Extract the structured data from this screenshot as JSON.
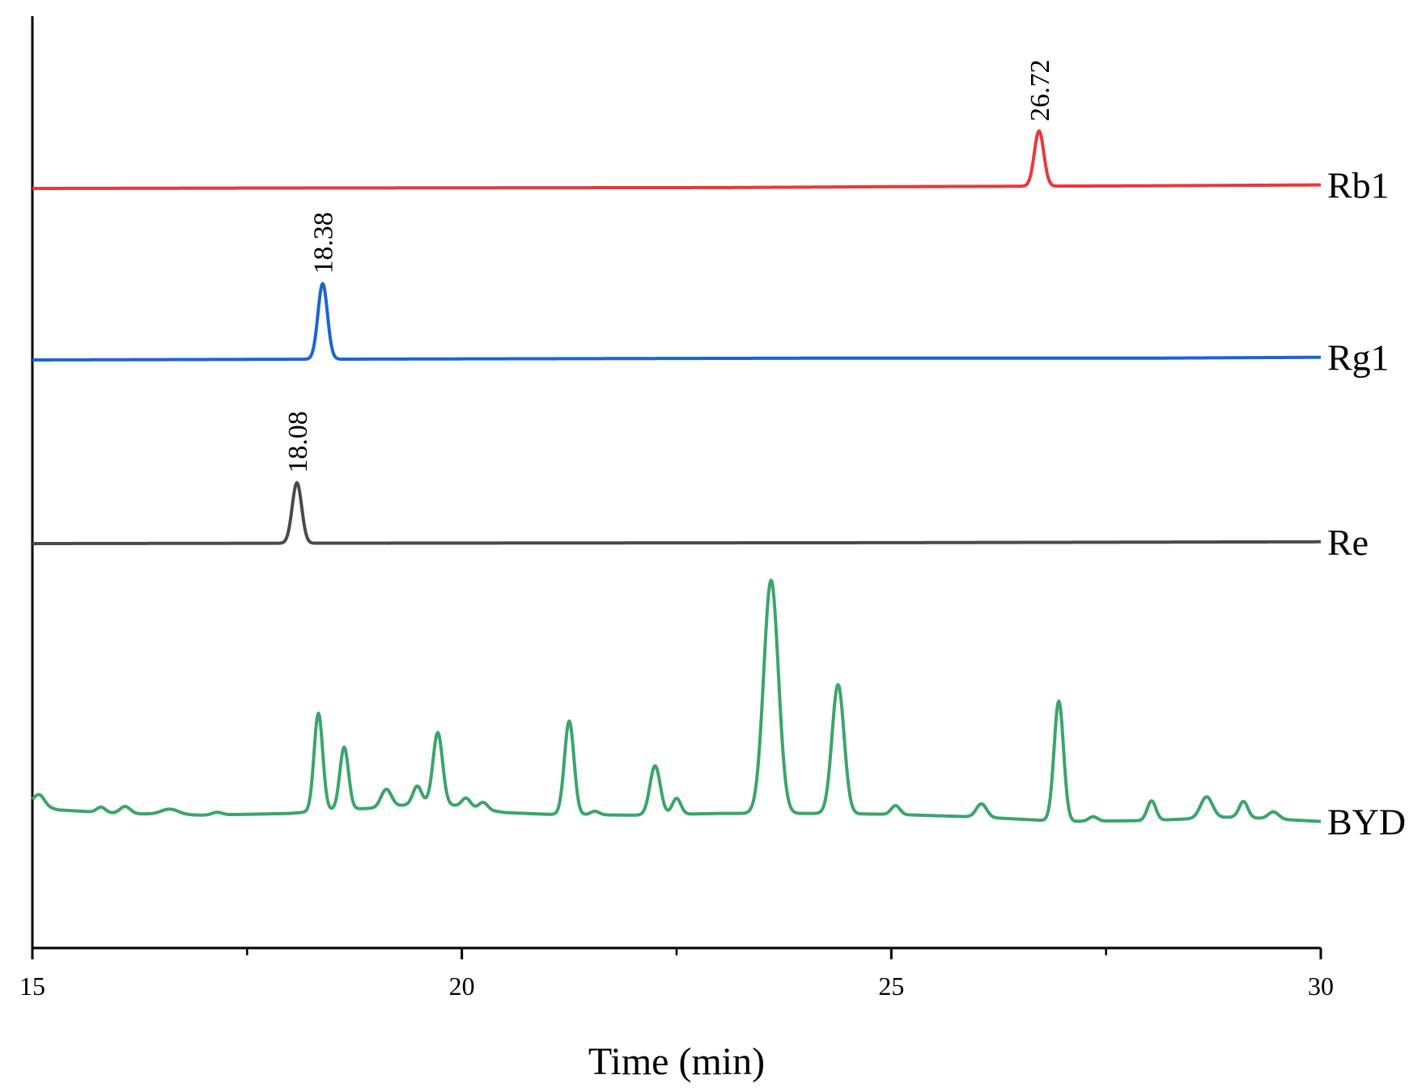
{
  "chart_data": {
    "type": "line",
    "xlabel": "Time (min)",
    "ylabel": "",
    "xlim": [
      15,
      30
    ],
    "x_ticks": [
      "15",
      "20",
      "25",
      "30"
    ],
    "x_minor_ticks": [
      17.5,
      22.5,
      27.5
    ],
    "y_ticks_shown": false,
    "grid": false,
    "legend": "none (series labelled at right end of each trace)",
    "series": [
      {
        "name": "Rb1",
        "color": "#e8393b",
        "baseline": [
          [
            15,
            0
          ],
          [
            18,
            0.005
          ],
          [
            23,
            0.01
          ],
          [
            25,
            0.02
          ],
          [
            28,
            0.03
          ],
          [
            30,
            0.04
          ]
        ],
        "peaks": [
          {
            "x": 26.72,
            "height": 0.62,
            "width": 0.055
          }
        ],
        "annotation": "26.72"
      },
      {
        "name": "Rg1",
        "color": "#1c64d6",
        "baseline": [
          [
            15,
            0
          ],
          [
            19,
            0.01
          ],
          [
            24,
            0.02
          ],
          [
            28,
            0.02
          ],
          [
            30,
            0.03
          ]
        ],
        "peaks": [
          {
            "x": 18.38,
            "height": 0.85,
            "width": 0.055
          }
        ],
        "annotation": "18.38"
      },
      {
        "name": "Re",
        "color": "#4a4a4a",
        "baseline": [
          [
            15,
            0
          ],
          [
            19,
            0.005
          ],
          [
            25,
            0.01
          ],
          [
            30,
            0.02
          ]
        ],
        "peaks": [
          {
            "x": 18.08,
            "height": 0.68,
            "width": 0.055
          }
        ],
        "annotation": "18.08"
      },
      {
        "name": "BYD",
        "color": "#3aa56a",
        "baseline": [
          [
            15,
            0.15
          ],
          [
            15.3,
            0.08
          ],
          [
            16,
            0.04
          ],
          [
            17,
            0.02
          ],
          [
            18,
            0.04
          ],
          [
            18.5,
            0.08
          ],
          [
            19,
            0.1
          ],
          [
            19.6,
            0.16
          ],
          [
            20,
            0.12
          ],
          [
            20.5,
            0.05
          ],
          [
            21,
            0.03
          ],
          [
            22,
            0.02
          ],
          [
            23,
            0.04
          ],
          [
            24.2,
            0.04
          ],
          [
            25,
            0.03
          ],
          [
            26,
            0.0
          ],
          [
            27,
            -0.05
          ],
          [
            28,
            -0.04
          ],
          [
            29,
            0.0
          ],
          [
            30,
            -0.05
          ]
        ],
        "peaks": [
          {
            "x": 15.08,
            "height": 0.12,
            "width": 0.06
          },
          {
            "x": 15.8,
            "height": 0.06,
            "width": 0.05
          },
          {
            "x": 16.08,
            "height": 0.08,
            "width": 0.06
          },
          {
            "x": 16.6,
            "height": 0.06,
            "width": 0.1
          },
          {
            "x": 17.15,
            "height": 0.03,
            "width": 0.06
          },
          {
            "x": 18.33,
            "height": 1.1,
            "width": 0.05
          },
          {
            "x": 18.63,
            "height": 0.7,
            "width": 0.05
          },
          {
            "x": 19.12,
            "height": 0.2,
            "width": 0.06
          },
          {
            "x": 19.48,
            "height": 0.2,
            "width": 0.05
          },
          {
            "x": 19.72,
            "height": 0.8,
            "width": 0.055
          },
          {
            "x": 20.05,
            "height": 0.1,
            "width": 0.05
          },
          {
            "x": 20.25,
            "height": 0.08,
            "width": 0.05
          },
          {
            "x": 21.25,
            "height": 1.05,
            "width": 0.055
          },
          {
            "x": 21.55,
            "height": 0.04,
            "width": 0.05
          },
          {
            "x": 22.25,
            "height": 0.55,
            "width": 0.06
          },
          {
            "x": 22.5,
            "height": 0.18,
            "width": 0.05
          },
          {
            "x": 23.6,
            "height": 2.62,
            "width": 0.085
          },
          {
            "x": 24.38,
            "height": 1.45,
            "width": 0.07
          },
          {
            "x": 25.05,
            "height": 0.1,
            "width": 0.05
          },
          {
            "x": 26.05,
            "height": 0.15,
            "width": 0.06
          },
          {
            "x": 26.95,
            "height": 1.35,
            "width": 0.055
          },
          {
            "x": 27.35,
            "height": 0.05,
            "width": 0.05
          },
          {
            "x": 28.03,
            "height": 0.22,
            "width": 0.05
          },
          {
            "x": 28.67,
            "height": 0.24,
            "width": 0.07
          },
          {
            "x": 29.1,
            "height": 0.18,
            "width": 0.05
          },
          {
            "x": 29.45,
            "height": 0.08,
            "width": 0.06
          }
        ],
        "annotation": ""
      }
    ]
  }
}
